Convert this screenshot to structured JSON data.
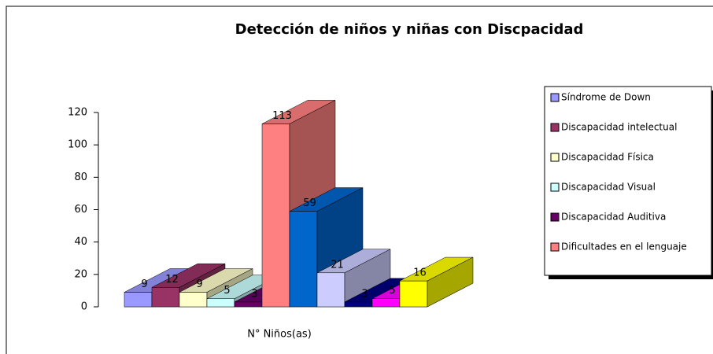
{
  "chart_data": {
    "type": "bar3d",
    "title": "Detección de niños y niñas con Discpacidad",
    "x_label": "N° Niños(as)",
    "ylim": [
      0,
      120
    ],
    "yticks": [
      0,
      20,
      40,
      60,
      80,
      100,
      120
    ],
    "series": [
      {
        "name": "Síndrome de Down",
        "color": "#9999ff",
        "values": [
          9
        ]
      },
      {
        "name": "Discapacidad intelectual",
        "color": "#993366",
        "values": [
          12
        ]
      },
      {
        "name": "Discapacidad Física",
        "color": "#ffffcc",
        "values": [
          9
        ]
      },
      {
        "name": "Discapacidad Visual",
        "color": "#ccffff",
        "values": [
          5
        ]
      },
      {
        "name": "Discapacidad Auditiva",
        "color": "#660066",
        "values": [
          3
        ]
      },
      {
        "name": "Dificultades en el lenguaje",
        "color": "#ff8080",
        "values": [
          113
        ]
      },
      {
        "color": "#0066cc",
        "values": [
          59
        ]
      },
      {
        "color": "#ccccff",
        "values": [
          21
        ]
      },
      {
        "color": "#000080",
        "values": [
          3
        ]
      },
      {
        "color": "#ff00ff",
        "values": [
          5
        ]
      },
      {
        "color": "#ffff00",
        "values": [
          16
        ]
      }
    ]
  }
}
